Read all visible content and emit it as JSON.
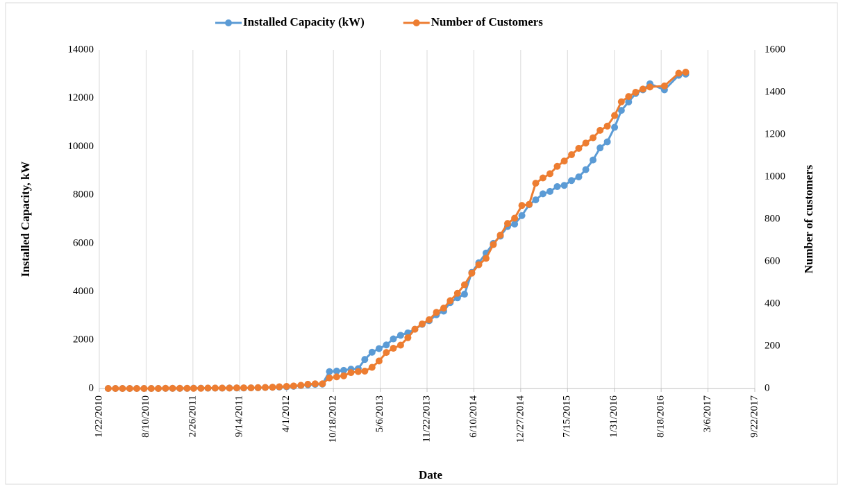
{
  "chart_data": {
    "type": "line",
    "x_label": "Date",
    "y_label": "Installed Capacity, kW",
    "y2_label": "Number of customers",
    "x": [
      "2010-03-01",
      "2010-04-01",
      "2010-05-01",
      "2010-06-01",
      "2010-07-01",
      "2010-08-01",
      "2010-09-01",
      "2010-10-01",
      "2010-11-01",
      "2010-12-01",
      "2011-01-01",
      "2011-02-01",
      "2011-03-01",
      "2011-04-01",
      "2011-05-01",
      "2011-06-01",
      "2011-07-01",
      "2011-08-01",
      "2011-09-01",
      "2011-10-01",
      "2011-11-01",
      "2011-12-01",
      "2012-01-01",
      "2012-02-01",
      "2012-03-01",
      "2012-04-01",
      "2012-05-01",
      "2012-06-01",
      "2012-07-01",
      "2012-08-01",
      "2012-09-01",
      "2012-10-01",
      "2012-11-01",
      "2012-12-01",
      "2013-01-01",
      "2013-02-01",
      "2013-03-01",
      "2013-04-01",
      "2013-05-01",
      "2013-06-01",
      "2013-07-01",
      "2013-08-01",
      "2013-09-01",
      "2013-10-01",
      "2013-11-01",
      "2013-12-01",
      "2014-01-01",
      "2014-02-01",
      "2014-03-01",
      "2014-04-01",
      "2014-05-01",
      "2014-06-01",
      "2014-07-01",
      "2014-08-01",
      "2014-09-01",
      "2014-10-01",
      "2014-11-01",
      "2014-12-01",
      "2015-01-01",
      "2015-02-01",
      "2015-03-01",
      "2015-04-01",
      "2015-05-01",
      "2015-06-01",
      "2015-07-01",
      "2015-08-01",
      "2015-09-01",
      "2015-10-01",
      "2015-11-01",
      "2015-12-01",
      "2016-01-01",
      "2016-02-01",
      "2016-03-01",
      "2016-04-01",
      "2016-05-01",
      "2016-06-01",
      "2016-07-01",
      "2016-09-01",
      "2016-11-01",
      "2016-12-01"
    ],
    "series": [
      {
        "name": "Installed Capacity (kW)",
        "color": "#5b9bd5",
        "axis": "y",
        "values": [
          0,
          0,
          0,
          0,
          0,
          0,
          0,
          0,
          5,
          5,
          5,
          5,
          10,
          10,
          10,
          15,
          15,
          20,
          20,
          20,
          25,
          30,
          40,
          50,
          60,
          70,
          90,
          120,
          150,
          170,
          180,
          700,
          720,
          750,
          800,
          820,
          1200,
          1500,
          1650,
          1800,
          2050,
          2200,
          2300,
          2450,
          2650,
          2800,
          3050,
          3200,
          3550,
          3750,
          3900,
          4800,
          5200,
          5600,
          6000,
          6300,
          6700,
          6800,
          7150,
          7600,
          7800,
          8050,
          8150,
          8350,
          8400,
          8600,
          8750,
          9050,
          9450,
          9950,
          10200,
          10800,
          11500,
          11850,
          12200,
          12350,
          12600,
          12350,
          12950,
          13000
        ]
      },
      {
        "name": "Number of Customers",
        "color": "#ed7d31",
        "axis": "y2",
        "values": [
          0,
          0,
          0,
          0,
          0,
          0,
          0,
          0,
          1,
          1,
          1,
          1,
          1,
          1,
          2,
          2,
          2,
          2,
          3,
          3,
          3,
          4,
          5,
          6,
          8,
          10,
          12,
          15,
          20,
          22,
          22,
          50,
          55,
          60,
          75,
          80,
          82,
          100,
          130,
          170,
          190,
          205,
          240,
          280,
          305,
          325,
          360,
          380,
          415,
          450,
          490,
          545,
          585,
          615,
          680,
          725,
          780,
          805,
          865,
          870,
          970,
          995,
          1015,
          1050,
          1075,
          1105,
          1135,
          1160,
          1185,
          1220,
          1240,
          1290,
          1355,
          1380,
          1400,
          1415,
          1425,
          1430,
          1490,
          1495
        ]
      }
    ],
    "xlim": [
      "2010-01-22",
      "2017-09-22"
    ],
    "xticks": [
      {
        "value": "2010-01-22",
        "label": "1/22/2010"
      },
      {
        "value": "2010-08-10",
        "label": "8/10/2010"
      },
      {
        "value": "2011-02-26",
        "label": "2/26/2011"
      },
      {
        "value": "2011-09-14",
        "label": "9/14/2011"
      },
      {
        "value": "2012-04-01",
        "label": "4/1/2012"
      },
      {
        "value": "2012-10-18",
        "label": "10/18/2012"
      },
      {
        "value": "2013-05-06",
        "label": "5/6/2013"
      },
      {
        "value": "2013-11-22",
        "label": "11/22/2013"
      },
      {
        "value": "2014-06-10",
        "label": "6/10/2014"
      },
      {
        "value": "2014-12-27",
        "label": "12/27/2014"
      },
      {
        "value": "2015-07-15",
        "label": "7/15/2015"
      },
      {
        "value": "2016-01-31",
        "label": "1/31/2016"
      },
      {
        "value": "2016-08-18",
        "label": "8/18/2016"
      },
      {
        "value": "2017-03-06",
        "label": "3/6/2017"
      },
      {
        "value": "2017-09-22",
        "label": "9/22/2017"
      }
    ],
    "ylim": [
      0,
      14000
    ],
    "yticks": [
      0,
      2000,
      4000,
      6000,
      8000,
      10000,
      12000,
      14000
    ],
    "y2lim": [
      0,
      1600
    ],
    "y2ticks": [
      0,
      200,
      400,
      600,
      800,
      1000,
      1200,
      1400,
      1600
    ],
    "grid": "x",
    "legend": "top"
  }
}
